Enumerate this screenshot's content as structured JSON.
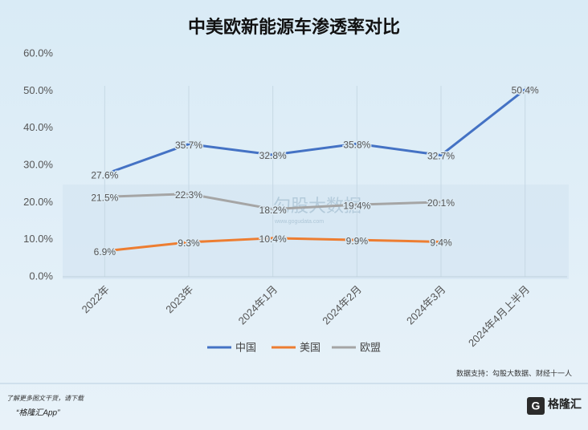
{
  "chart_data": {
    "type": "line",
    "title": "中美欧新能源车渗透率对比",
    "categories": [
      "2022年",
      "2023年",
      "2024年1月",
      "2024年2月",
      "2024年3月",
      "2024年4月上半月"
    ],
    "series": [
      {
        "name": "中国",
        "color": "#4472c4",
        "values": [
          27.6,
          35.7,
          32.8,
          35.8,
          32.7,
          50.4
        ],
        "value_labels": [
          "27.6%",
          "35.7%",
          "32.8%",
          "35.8%",
          "32.7%",
          "50.4%"
        ]
      },
      {
        "name": "美国",
        "color": "#ed7d31",
        "values": [
          6.9,
          9.3,
          10.4,
          9.9,
          9.4,
          null
        ],
        "value_labels": [
          "6.9%",
          "9.3%",
          "10.4%",
          "9.9%",
          "9.4%",
          null
        ]
      },
      {
        "name": "欧盟",
        "color": "#a5a5a5",
        "values": [
          21.5,
          22.3,
          18.2,
          19.4,
          20.1,
          null
        ],
        "value_labels": [
          "21.5%",
          "22.3%",
          "18.2%",
          "19.4%",
          "20.1%",
          null
        ]
      }
    ],
    "ylim": [
      0,
      60
    ],
    "yticks": [
      {
        "value": 0,
        "label": "0.0%"
      },
      {
        "value": 10,
        "label": "10.0%"
      },
      {
        "value": 20,
        "label": "20.0%"
      },
      {
        "value": 30,
        "label": "30.0%"
      },
      {
        "value": 40,
        "label": "40.0%"
      },
      {
        "value": 50,
        "label": "50.0%"
      },
      {
        "value": 60,
        "label": "60.0%"
      }
    ],
    "grid": false,
    "legend": "bottom",
    "source": "数据支持：勾股大数据、财经十一人",
    "watermark": "勾股大数据",
    "watermark_url": "www.gogudata.com"
  },
  "footer": {
    "note": "了解更多图文干货，请下载",
    "app": "“格隆汇App”",
    "logo": "格隆汇"
  }
}
